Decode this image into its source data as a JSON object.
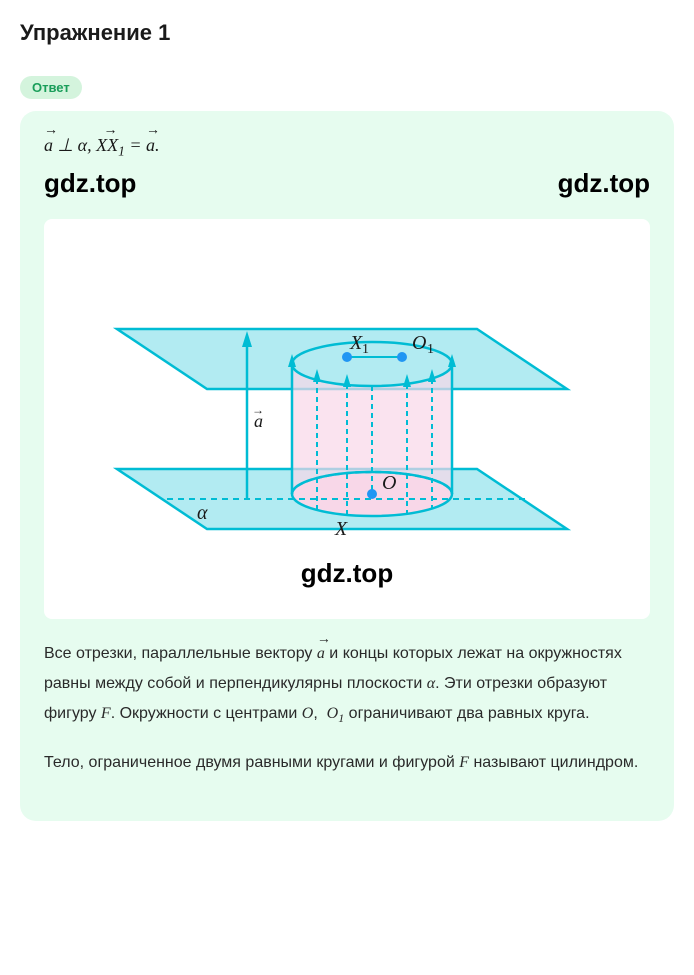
{
  "title": "Упражнение 1",
  "badge": "Ответ",
  "formula_html": "<span class='vec-over'>a</span> ⊥ α, <span class='vec-over'>XX<span class='sub'>1</span></span> = <span class='vec-over'>a</span>.",
  "watermark": "gdz.top",
  "diagram": {
    "type": "geometric-diagram",
    "stroke_color": "#00bcd4",
    "fill_color_top": "#b2ebf2",
    "fill_color_cylinder": "#f8d7e8",
    "fill_color_bottom": "#b2ebf2",
    "point_color": "#2196f3",
    "labels": {
      "X1": "X₁",
      "O1": "O₁",
      "O": "O",
      "X": "X",
      "alpha": "α",
      "a": "a"
    },
    "label_fontsize": 20,
    "label_color": "#1a1a1a",
    "stroke_width": 2.5
  },
  "paragraph1_html": "Все отрезки, параллельные вектору <span class='vec-over math-var'>a</span> и концы которых лежат на окружностях равны между собой и перпендикулярны плоскости <span class='math-var'>α</span>. Эти отрезки образуют фигуру <span class='math-var'>F</span>. Окружности с центрами <span class='math-var'>O</span>, &nbsp;<span class='math-var'>O<span class='sub'>1</span></span> ограничивают два равных круга.",
  "paragraph2_html": "Тело, ограниченное двумя равными кругами и фигурой <span class='math-var'>F</span> называют цилиндром.",
  "colors": {
    "badge_bg": "#d4f4dd",
    "badge_text": "#1a9e5a",
    "solution_bg": "#e6fcef",
    "text": "#1a1a1a"
  }
}
